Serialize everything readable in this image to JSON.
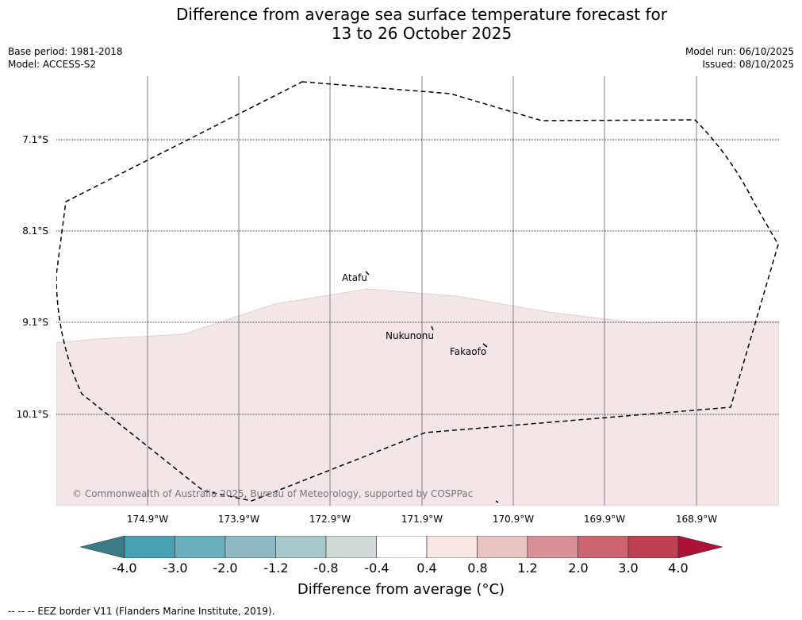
{
  "title": {
    "line1": "Difference from average sea surface temperature forecast for",
    "line2": "13 to 26 October 2025"
  },
  "meta": {
    "base_period": "Base period: 1981-2018",
    "model": "Model: ACCESS-S2",
    "model_run": "Model run: 06/10/2025",
    "issued": "Issued: 08/10/2025"
  },
  "map": {
    "lat_labels": [
      "7.1°S",
      "8.1°S",
      "9.1°S",
      "10.1°S"
    ],
    "lon_labels": [
      "174.9°W",
      "173.9°W",
      "172.9°W",
      "171.9°W",
      "170.9°W",
      "169.9°W",
      "168.9°W"
    ],
    "places": [
      "Atafu",
      "Nukunonu",
      "Fakaofo"
    ],
    "copyright": "© Commonwealth of Australia 2025, Bureau of Meteorology, supported by COSPPac",
    "anomaly_fill_color": "#f3e6e6",
    "eez_line_color": "#000000"
  },
  "colorbar": {
    "ticks": [
      "-4.0",
      "-3.0",
      "-2.0",
      "-1.2",
      "-0.8",
      "-0.4",
      "0.4",
      "0.8",
      "1.2",
      "2.0",
      "3.0",
      "4.0"
    ],
    "colors": [
      "#3a7b86",
      "#47a1b3",
      "#6aaebe",
      "#8eb9c3",
      "#a9c8cc",
      "#d0d8d8",
      "#ffffff",
      "#f7e6e4",
      "#e8c4c1",
      "#d98f96",
      "#cc6570",
      "#bd4152",
      "#ab1236"
    ],
    "label": "Difference from average (°C)"
  },
  "footnote": "-- -- -- EEZ border V11 (Flanders Marine Institute, 2019)."
}
